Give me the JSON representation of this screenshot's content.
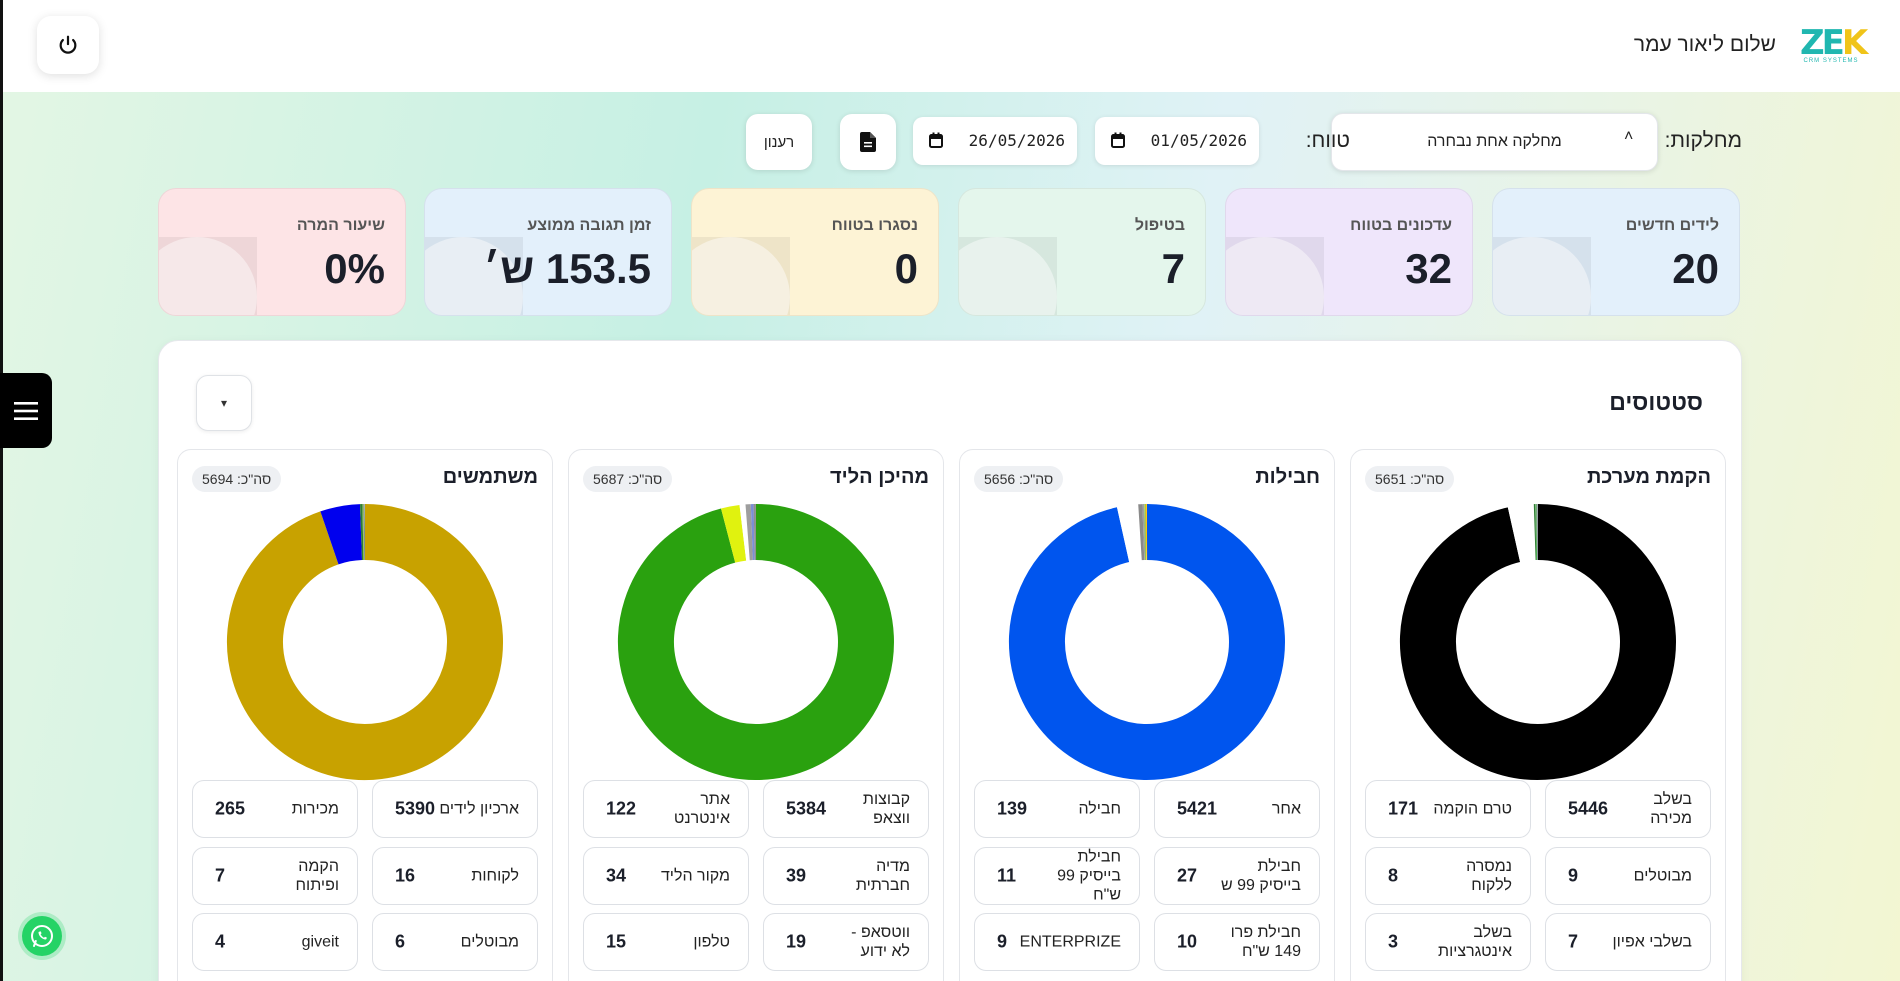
{
  "header": {
    "logo_text": "ZEK",
    "logo_sub": "CRM SYSTEMS",
    "greeting": "שלום ליאור עמר"
  },
  "filters": {
    "department_label": "מחלקות:",
    "department_value": "מחלקה אחת נבחרה",
    "range_label": "טווח:",
    "date_from": "01/05/2026",
    "date_to": "26/05/2026",
    "refresh_label": "רענון"
  },
  "kpis": [
    {
      "label": "לידים חדשים",
      "value": "20",
      "color": "#e3f0fb"
    },
    {
      "label": "עדכונים בטווח",
      "value": "32",
      "color": "#efe6fb"
    },
    {
      "label": "בטיפול",
      "value": "7",
      "color": "#e4f6ec"
    },
    {
      "label": "נסגרו בטווח",
      "value": "0",
      "color": "#fdf3d5"
    },
    {
      "label": "זמן תגובה ממוצע",
      "value": "153.5 ש׳",
      "color": "#e3f0fb"
    },
    {
      "label": "שיעור המרה",
      "value": "0%",
      "color": "#fde4e6"
    }
  ],
  "statuses": {
    "title": "סטטוסים",
    "dropdown_glyph": "▾"
  },
  "charts": [
    {
      "title": "הקמת מערכת",
      "total": "סה\"כ: 5651",
      "chart_data": {
        "type": "pie",
        "segments": [
          {
            "label": "בשלב מכירה",
            "value": 5446,
            "color": "#000000"
          },
          {
            "label": "טרם הוקמה",
            "value": 171,
            "color": "#ffffff"
          },
          {
            "label": "מבוטלים",
            "value": 9,
            "color": "#2e7d32"
          },
          {
            "label": "נמסרה ללקוח",
            "value": 8,
            "color": "#4caf50"
          },
          {
            "label": "בשלבי אפיון",
            "value": 7,
            "color": "#9e9e9e"
          },
          {
            "label": "בשלב אינטגרציות",
            "value": 3,
            "color": "#607d8b"
          }
        ]
      },
      "stats": [
        {
          "label": "בשלב מכירה",
          "value": "5446"
        },
        {
          "label": "טרם הוקמה",
          "value": "171"
        },
        {
          "label": "מבוטלים",
          "value": "9"
        },
        {
          "label": "נמסרה ללקוח",
          "value": "8"
        },
        {
          "label": "בשלבי אפיון",
          "value": "7"
        },
        {
          "label": "בשלב אינטגרציות",
          "value": "3"
        }
      ]
    },
    {
      "title": "חבילות",
      "total": "סה\"כ: 5656",
      "chart_data": {
        "type": "pie",
        "segments": [
          {
            "label": "אחר",
            "value": 5421,
            "color": "#0055ee"
          },
          {
            "label": "חבילה",
            "value": 139,
            "color": "#ffffff"
          },
          {
            "label": "חבילת בייסיק 99 ש",
            "value": 27,
            "color": "#8a8a8a"
          },
          {
            "label": "חבילת בייסיק 99 ש\"ח",
            "value": 11,
            "color": "#a0a0a0"
          },
          {
            "label": "חבילת פרו 149 ש\"ח",
            "value": 10,
            "color": "#8bc34a"
          },
          {
            "label": "ENTERPRIZE",
            "value": 9,
            "color": "#ffc107"
          }
        ]
      },
      "stats": [
        {
          "label": "אחר",
          "value": "5421"
        },
        {
          "label": "חבילה",
          "value": "139"
        },
        {
          "label": "חבילת בייסיק 99 ש",
          "value": "27"
        },
        {
          "label": "חבילת בייסיק 99 ש\"ח",
          "value": "11"
        },
        {
          "label": "חבילת פרו 149 ש\"ח",
          "value": "10"
        },
        {
          "label": "ENTERPRIZE",
          "value": "9"
        }
      ]
    },
    {
      "title": "מהיכן הליד",
      "total": "סה\"כ: 5687",
      "chart_data": {
        "type": "pie",
        "segments": [
          {
            "label": "קבוצות ווצאפ",
            "value": 5384,
            "color": "#2aa10f"
          },
          {
            "label": "אתר אינטרנט",
            "value": 122,
            "color": "#e0f20f"
          },
          {
            "label": "מדיה חברתית",
            "value": 39,
            "color": "#ffffff"
          },
          {
            "label": "מקור הליד",
            "value": 34,
            "color": "#9e9e9e"
          },
          {
            "label": "ווטסאפ - לא ידוע",
            "value": 19,
            "color": "#7b8fd6"
          },
          {
            "label": "טלפון",
            "value": 15,
            "color": "#8f8f8f"
          }
        ]
      },
      "stats": [
        {
          "label": "קבוצות ווצאפ",
          "value": "5384"
        },
        {
          "label": "אתר אינטרנט",
          "value": "122"
        },
        {
          "label": "מדיה חברתית",
          "value": "39"
        },
        {
          "label": "מקור הליד",
          "value": "34"
        },
        {
          "label": "ווטסאפ - לא ידוע",
          "value": "19"
        },
        {
          "label": "טלפון",
          "value": "15"
        }
      ]
    },
    {
      "title": "משתמשים",
      "total": "סה\"כ: 5694",
      "chart_data": {
        "type": "pie",
        "segments": [
          {
            "label": "ארכיון לידים",
            "value": 5390,
            "color": "#c8a200"
          },
          {
            "label": "מכירות",
            "value": 265,
            "color": "#0000ee"
          },
          {
            "label": "לקוחות",
            "value": 16,
            "color": "#2e7d32"
          },
          {
            "label": "הקמה ופיתוח",
            "value": 7,
            "color": "#8bc34a"
          },
          {
            "label": "מבוטלים",
            "value": 6,
            "color": "#9e9e9e"
          },
          {
            "label": "giveit",
            "value": 4,
            "color": "#607d8b"
          }
        ]
      },
      "stats": [
        {
          "label": "ארכיון לידים",
          "value": "5390"
        },
        {
          "label": "מכירות",
          "value": "265"
        },
        {
          "label": "לקוחות",
          "value": "16"
        },
        {
          "label": "הקמה ופיתוח",
          "value": "7"
        },
        {
          "label": "מבוטלים",
          "value": "6"
        },
        {
          "label": "giveit",
          "value": "4"
        }
      ]
    }
  ]
}
